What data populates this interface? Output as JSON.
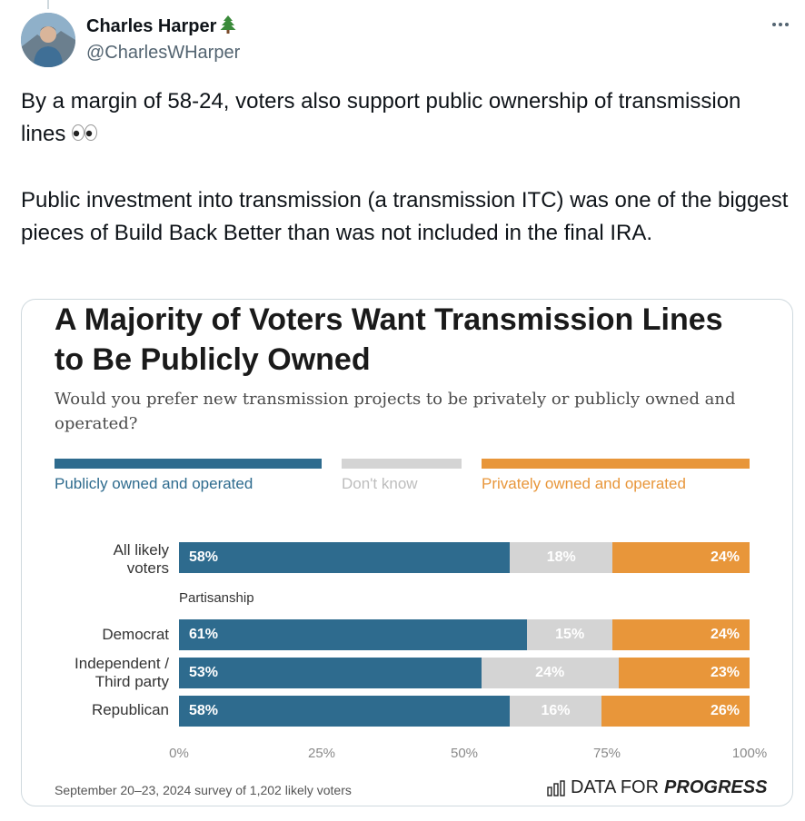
{
  "author": {
    "display_name": "Charles Harper",
    "handle": "@CharlesWHarper",
    "name_emoji": "tree-emoji"
  },
  "tweet": {
    "paragraph1": "By a margin of 58-24, voters also support public ownership of transmission lines",
    "paragraph2": "Public investment into transmission (a transmission ITC) was one of the biggest pieces of Build Back Better than was not included in the final IRA.",
    "emoji": "eyes-emoji"
  },
  "chart_card": {
    "title": "A Majority of Voters Want Transmission Lines to Be Publicly Owned",
    "subtitle": "Would you prefer new transmission projects to be privately or publicly owned and operated?",
    "group_label": "Partisanship",
    "footer": "September 20–23, 2024 survey of 1,202 likely voters",
    "brand_plain": "DATA FOR",
    "brand_bold": "PROGRESS"
  },
  "chart_data": {
    "type": "bar",
    "orientation": "horizontal-stacked",
    "title": "A Majority of Voters Want Transmission Lines to Be Publicly Owned",
    "subtitle": "Would you prefer new transmission projects to be privately or publicly owned and operated?",
    "categories": [
      "All likely voters",
      "Democrat",
      "Independent / Third party",
      "Republican"
    ],
    "series": [
      {
        "name": "Publicly owned and operated",
        "color": "#2e6b8e",
        "values": [
          58,
          61,
          53,
          58
        ]
      },
      {
        "name": "Don't know",
        "color": "#d4d4d4",
        "values": [
          18,
          15,
          24,
          16
        ]
      },
      {
        "name": "Privately owned and operated",
        "color": "#e8963a",
        "values": [
          24,
          24,
          23,
          26
        ]
      }
    ],
    "xlim": [
      0,
      100
    ],
    "xticks": [
      "0%",
      "25%",
      "50%",
      "75%",
      "100%"
    ],
    "grid": false,
    "legend": "top"
  }
}
